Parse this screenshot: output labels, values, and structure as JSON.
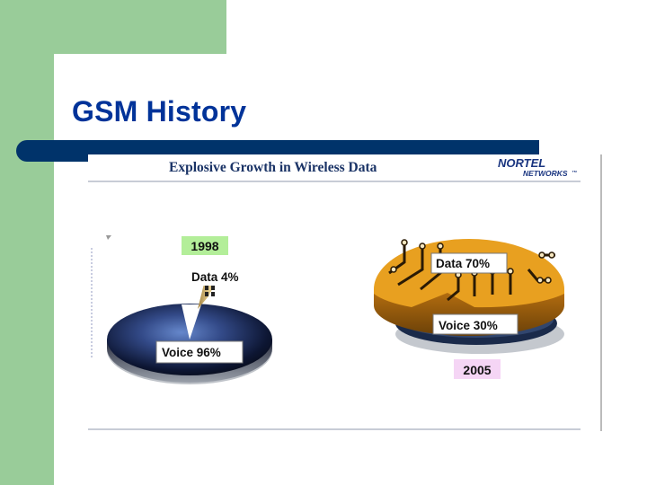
{
  "slide": {
    "title": "GSM History"
  },
  "figure": {
    "heading": "Explosive Growth in Wireless Data",
    "logo_line1": "NORTEL",
    "logo_line2": "NETWORKS",
    "logo_tm": "™"
  },
  "colors": {
    "green": "#99cc99",
    "title_blue": "#003399",
    "bar_navy": "#00336a",
    "year_1998_bg": "#b3ee99",
    "year_2005_bg": "#f5d5f5",
    "circuit_gold": "#e8a020"
  },
  "chart_data": [
    {
      "type": "pie",
      "title": "1998",
      "categories": [
        "Data",
        "Voice"
      ],
      "values": [
        4,
        96
      ],
      "labels": [
        "Data 4%",
        "Voice 96%"
      ]
    },
    {
      "type": "pie",
      "title": "2005",
      "categories": [
        "Data",
        "Voice"
      ],
      "values": [
        70,
        30
      ],
      "labels": [
        "Data 70%",
        "Voice 30%"
      ]
    }
  ]
}
